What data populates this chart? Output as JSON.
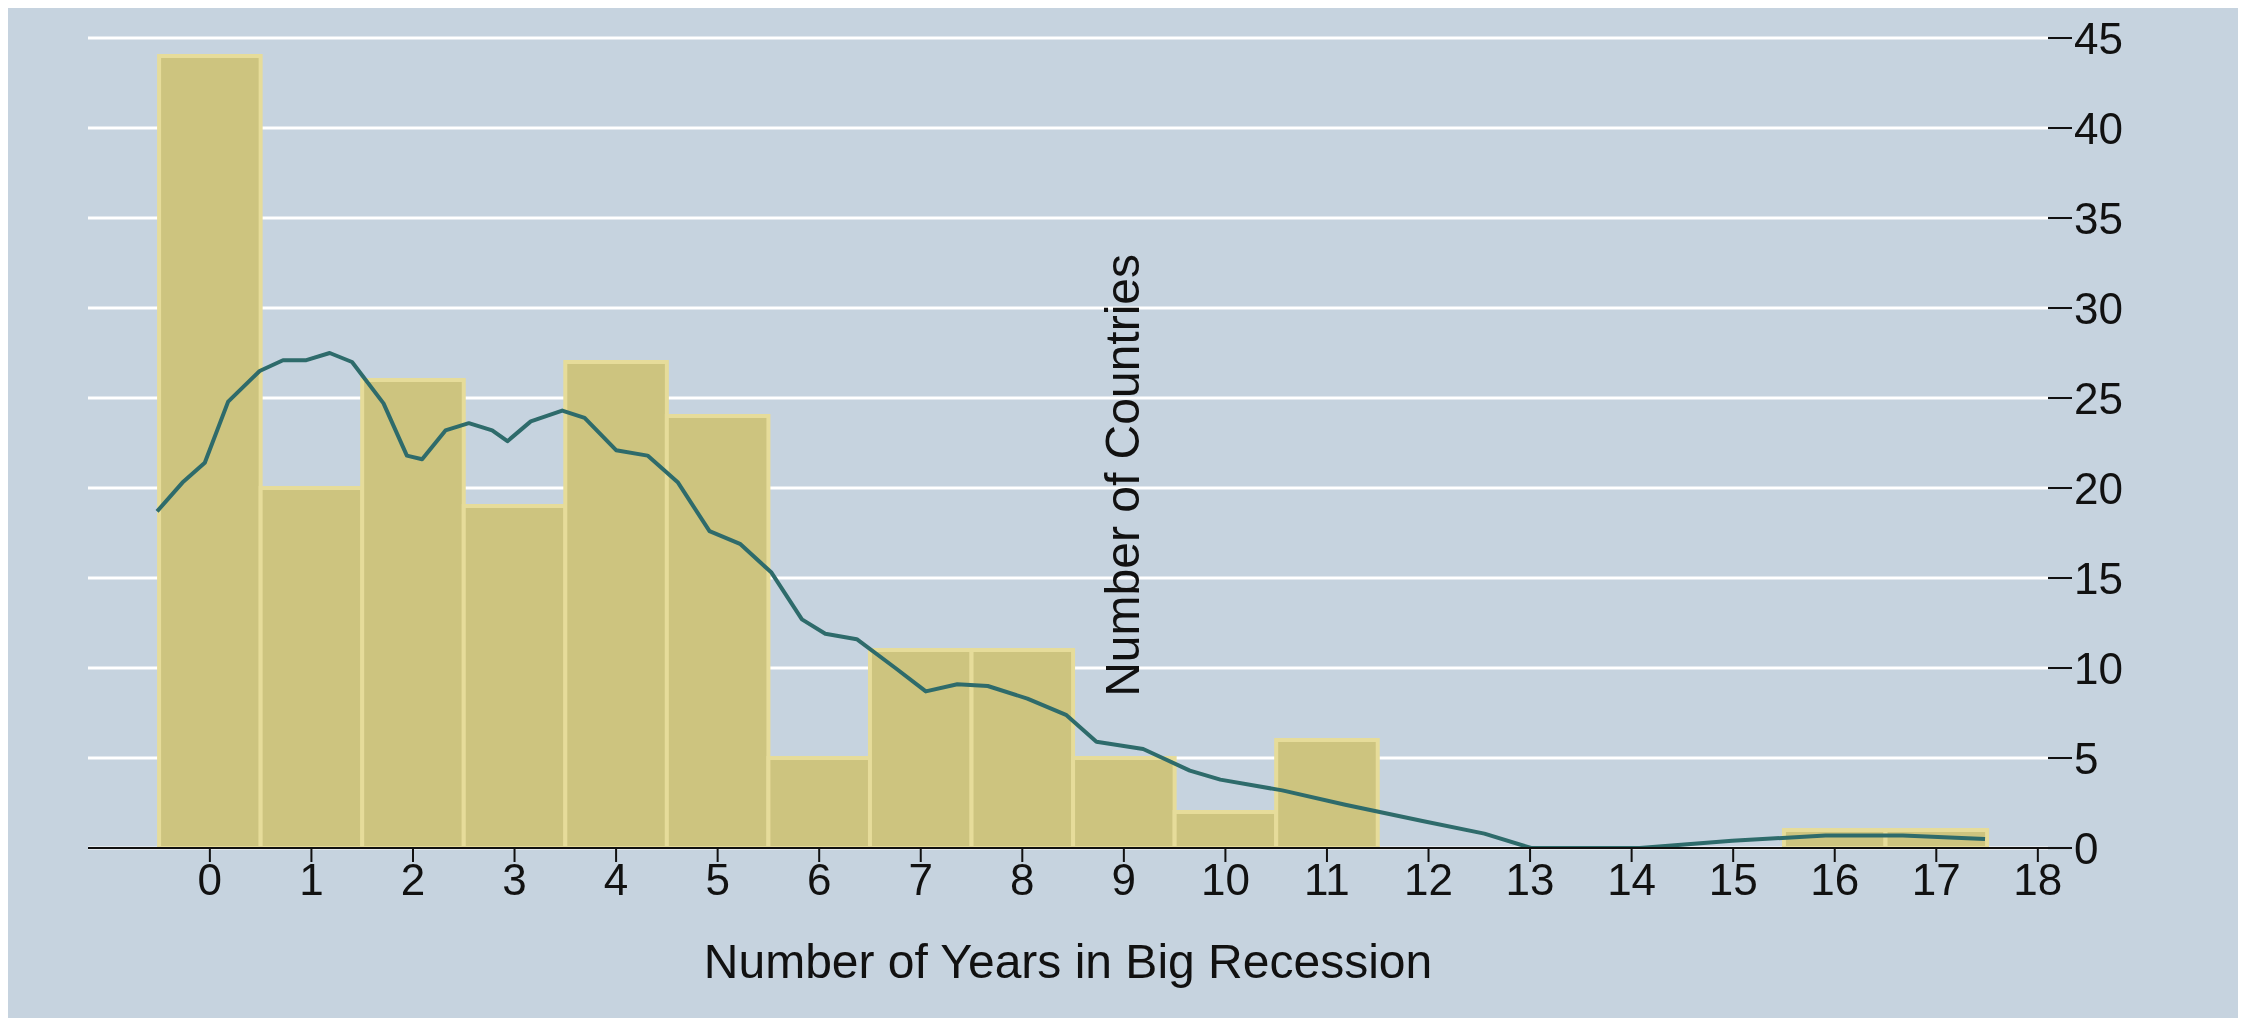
{
  "chart_data": {
    "type": "histogram",
    "xlabel": "Number of Years in Big Recession",
    "ylabel": "Number of Countries",
    "bins": [
      -0.5,
      0.5,
      1.5,
      2.5,
      3.5,
      4.5,
      5.5,
      6.5,
      7.5,
      8.5,
      9.5,
      10.5,
      11.5,
      12.5,
      13.5,
      14.5,
      15.5,
      16.5,
      17.5
    ],
    "values": [
      44,
      20,
      26,
      19,
      27,
      24,
      5,
      11,
      11,
      5,
      2,
      6,
      0,
      0,
      0,
      0,
      1,
      1
    ],
    "color": "#cdc47f",
    "series": [
      {
        "type": "line",
        "color": "#2e6b6b",
        "x": [
          -0.52,
          -0.27,
          -0.05,
          0.18,
          0.49,
          0.72,
          0.95,
          1.18,
          1.4,
          1.71,
          1.94,
          2.09,
          2.32,
          2.55,
          2.78,
          2.93,
          3.16,
          3.47,
          3.69,
          4.0,
          4.31,
          4.61,
          4.92,
          5.22,
          5.53,
          5.83,
          6.06,
          6.37,
          6.75,
          7.05,
          7.36,
          7.66,
          8.05,
          8.43,
          8.73,
          9.19,
          9.65,
          9.95,
          10.56,
          11.18,
          11.94,
          12.55,
          13.01,
          14.08,
          14.99,
          15.91,
          16.67,
          17.48
        ],
        "values": [
          18.7,
          20.3,
          21.4,
          24.8,
          26.5,
          27.1,
          27.1,
          27.5,
          27.0,
          24.7,
          21.8,
          21.6,
          23.2,
          23.6,
          23.2,
          22.6,
          23.7,
          24.3,
          23.9,
          22.1,
          21.8,
          20.3,
          17.6,
          16.9,
          15.3,
          12.7,
          11.9,
          11.6,
          10.0,
          8.7,
          9.1,
          9.0,
          8.3,
          7.4,
          5.9,
          5.5,
          4.3,
          3.8,
          3.2,
          2.4,
          1.5,
          0.8,
          0,
          0,
          0.4,
          0.7,
          0.7,
          0.5
        ]
      }
    ],
    "xlim": [
      -1.2,
      18.1
    ],
    "xticks": [
      0,
      1,
      2,
      3,
      4,
      5,
      6,
      7,
      8,
      9,
      10,
      11,
      12,
      13,
      14,
      15,
      16,
      17,
      18
    ],
    "ylim": [
      0,
      45
    ],
    "yticks": [
      0,
      5,
      10,
      15,
      20,
      25,
      30,
      35,
      40,
      45
    ],
    "grid": "y",
    "legend": false,
    "marker": "none",
    "line_style": "solid"
  }
}
